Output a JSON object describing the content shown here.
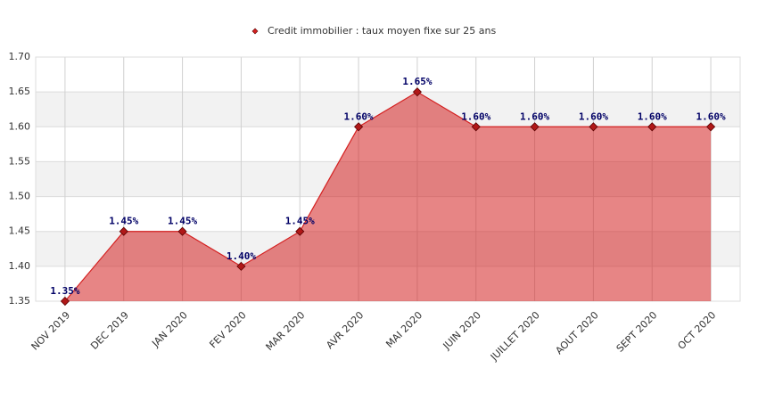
{
  "chart_data": {
    "type": "area",
    "categories": [
      "NOV 2019",
      "DEC 2019",
      "JAN 2020",
      "FEV 2020",
      "MAR 2020",
      "AVR 2020",
      "MAI 2020",
      "JUIN 2020",
      "JUILLET 2020",
      "AOUT 2020",
      "SEPT 2020",
      "OCT 2020"
    ],
    "series": [
      {
        "name": "Credit immobilier : taux moyen fixe sur 25 ans",
        "color": "#d42020",
        "values": [
          1.35,
          1.45,
          1.45,
          1.4,
          1.45,
          1.6,
          1.65,
          1.6,
          1.6,
          1.6,
          1.6,
          1.6
        ],
        "value_labels": [
          "1.35%",
          "1.45%",
          "1.45%",
          "1.40%",
          "1.45%",
          "1.60%",
          "1.65%",
          "1.60%",
          "1.60%",
          "1.60%",
          "1.60%",
          "1.60%"
        ]
      }
    ],
    "ylim": [
      1.35,
      1.7
    ],
    "yticks": [
      1.35,
      {
        "value": 1.4,
        "label": "1.40"
      },
      1.45,
      {
        "value": 1.5,
        "label": "1.50"
      },
      1.55,
      {
        "value": 1.6,
        "label": "1.60"
      },
      1.65,
      {
        "value": 1.7,
        "label": "1.70"
      }
    ],
    "grid": true
  }
}
